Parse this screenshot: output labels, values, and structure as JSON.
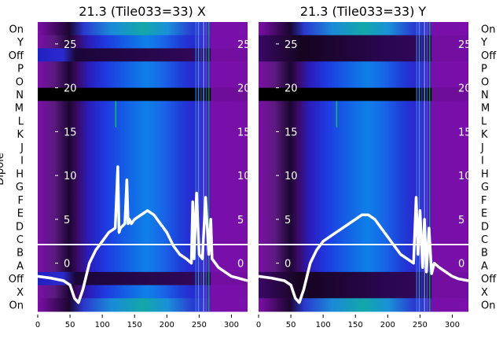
{
  "figure": {
    "ylabel": "Dipole",
    "colors": {
      "background": "#ffffff",
      "trace": "#ffffff",
      "hline": "#ffffff",
      "text": "#000000",
      "overlay_text": "#ffffff"
    },
    "row_labels": [
      "On",
      "Y",
      "Off",
      "P",
      "O",
      "N",
      "M",
      "L",
      "K",
      "J",
      "I",
      "H",
      "G",
      "F",
      "E",
      "D",
      "C",
      "B",
      "A",
      "Off",
      "X",
      "On"
    ]
  },
  "chart_data": [
    {
      "type": "heatmap",
      "title": "21.3 (Tile033=33) X",
      "x_ticks": [
        0,
        50,
        100,
        150,
        200,
        250,
        300
      ],
      "xlim": [
        0,
        325
      ],
      "overlay_ticks": [
        0,
        5,
        10,
        15,
        20,
        25
      ],
      "overlay_ylim": [
        -5.5,
        27.5
      ],
      "hline_at_row": "B/C boundary",
      "white_trace": {
        "x": [
          0,
          20,
          40,
          50,
          57,
          63,
          70,
          80,
          90,
          100,
          110,
          120,
          124,
          126,
          128,
          135,
          138,
          140,
          142,
          145,
          150,
          160,
          170,
          180,
          190,
          200,
          210,
          220,
          230,
          238,
          240,
          242,
          246,
          250,
          255,
          260,
          265,
          268,
          270,
          280,
          290,
          300,
          310,
          325
        ],
        "y": [
          -1.5,
          -1.7,
          -2,
          -2.5,
          -4,
          -4.5,
          -3,
          0,
          1.5,
          2.5,
          3.5,
          4,
          11,
          3.5,
          4,
          4.5,
          9.5,
          4.5,
          5,
          4.5,
          5,
          5.5,
          6,
          5.5,
          4.5,
          3.5,
          2,
          1,
          0.5,
          0,
          7,
          0.5,
          8,
          1,
          0.5,
          7.5,
          1,
          5,
          0.5,
          -0.5,
          -1,
          -1.5,
          -1.7,
          -2
        ]
      }
    },
    {
      "type": "heatmap",
      "title": "21.3 (Tile033=33) Y",
      "x_ticks": [
        0,
        50,
        100,
        150,
        200,
        250,
        300
      ],
      "xlim": [
        0,
        325
      ],
      "overlay_ticks": [
        0,
        5,
        10,
        15,
        20,
        25
      ],
      "overlay_ylim": [
        -5.5,
        27.5
      ],
      "hline_at_row": "B/C boundary",
      "white_trace": {
        "x": [
          0,
          20,
          40,
          50,
          57,
          63,
          70,
          80,
          90,
          100,
          110,
          120,
          130,
          140,
          150,
          160,
          170,
          180,
          190,
          200,
          210,
          220,
          230,
          240,
          244,
          247,
          250,
          254,
          257,
          260,
          264,
          268,
          272,
          280,
          290,
          300,
          310,
          325
        ],
        "y": [
          -1.5,
          -1.7,
          -2,
          -2.5,
          -4,
          -4.5,
          -3,
          0,
          1.5,
          2.5,
          3,
          3.5,
          4,
          4.5,
          5,
          5.5,
          5.5,
          5,
          4,
          3,
          2,
          1,
          0.5,
          0,
          7.5,
          1,
          6,
          -0.5,
          5,
          -1,
          4,
          -1.2,
          0,
          -0.5,
          -1,
          -1.5,
          -1.8,
          -2
        ]
      }
    }
  ]
}
